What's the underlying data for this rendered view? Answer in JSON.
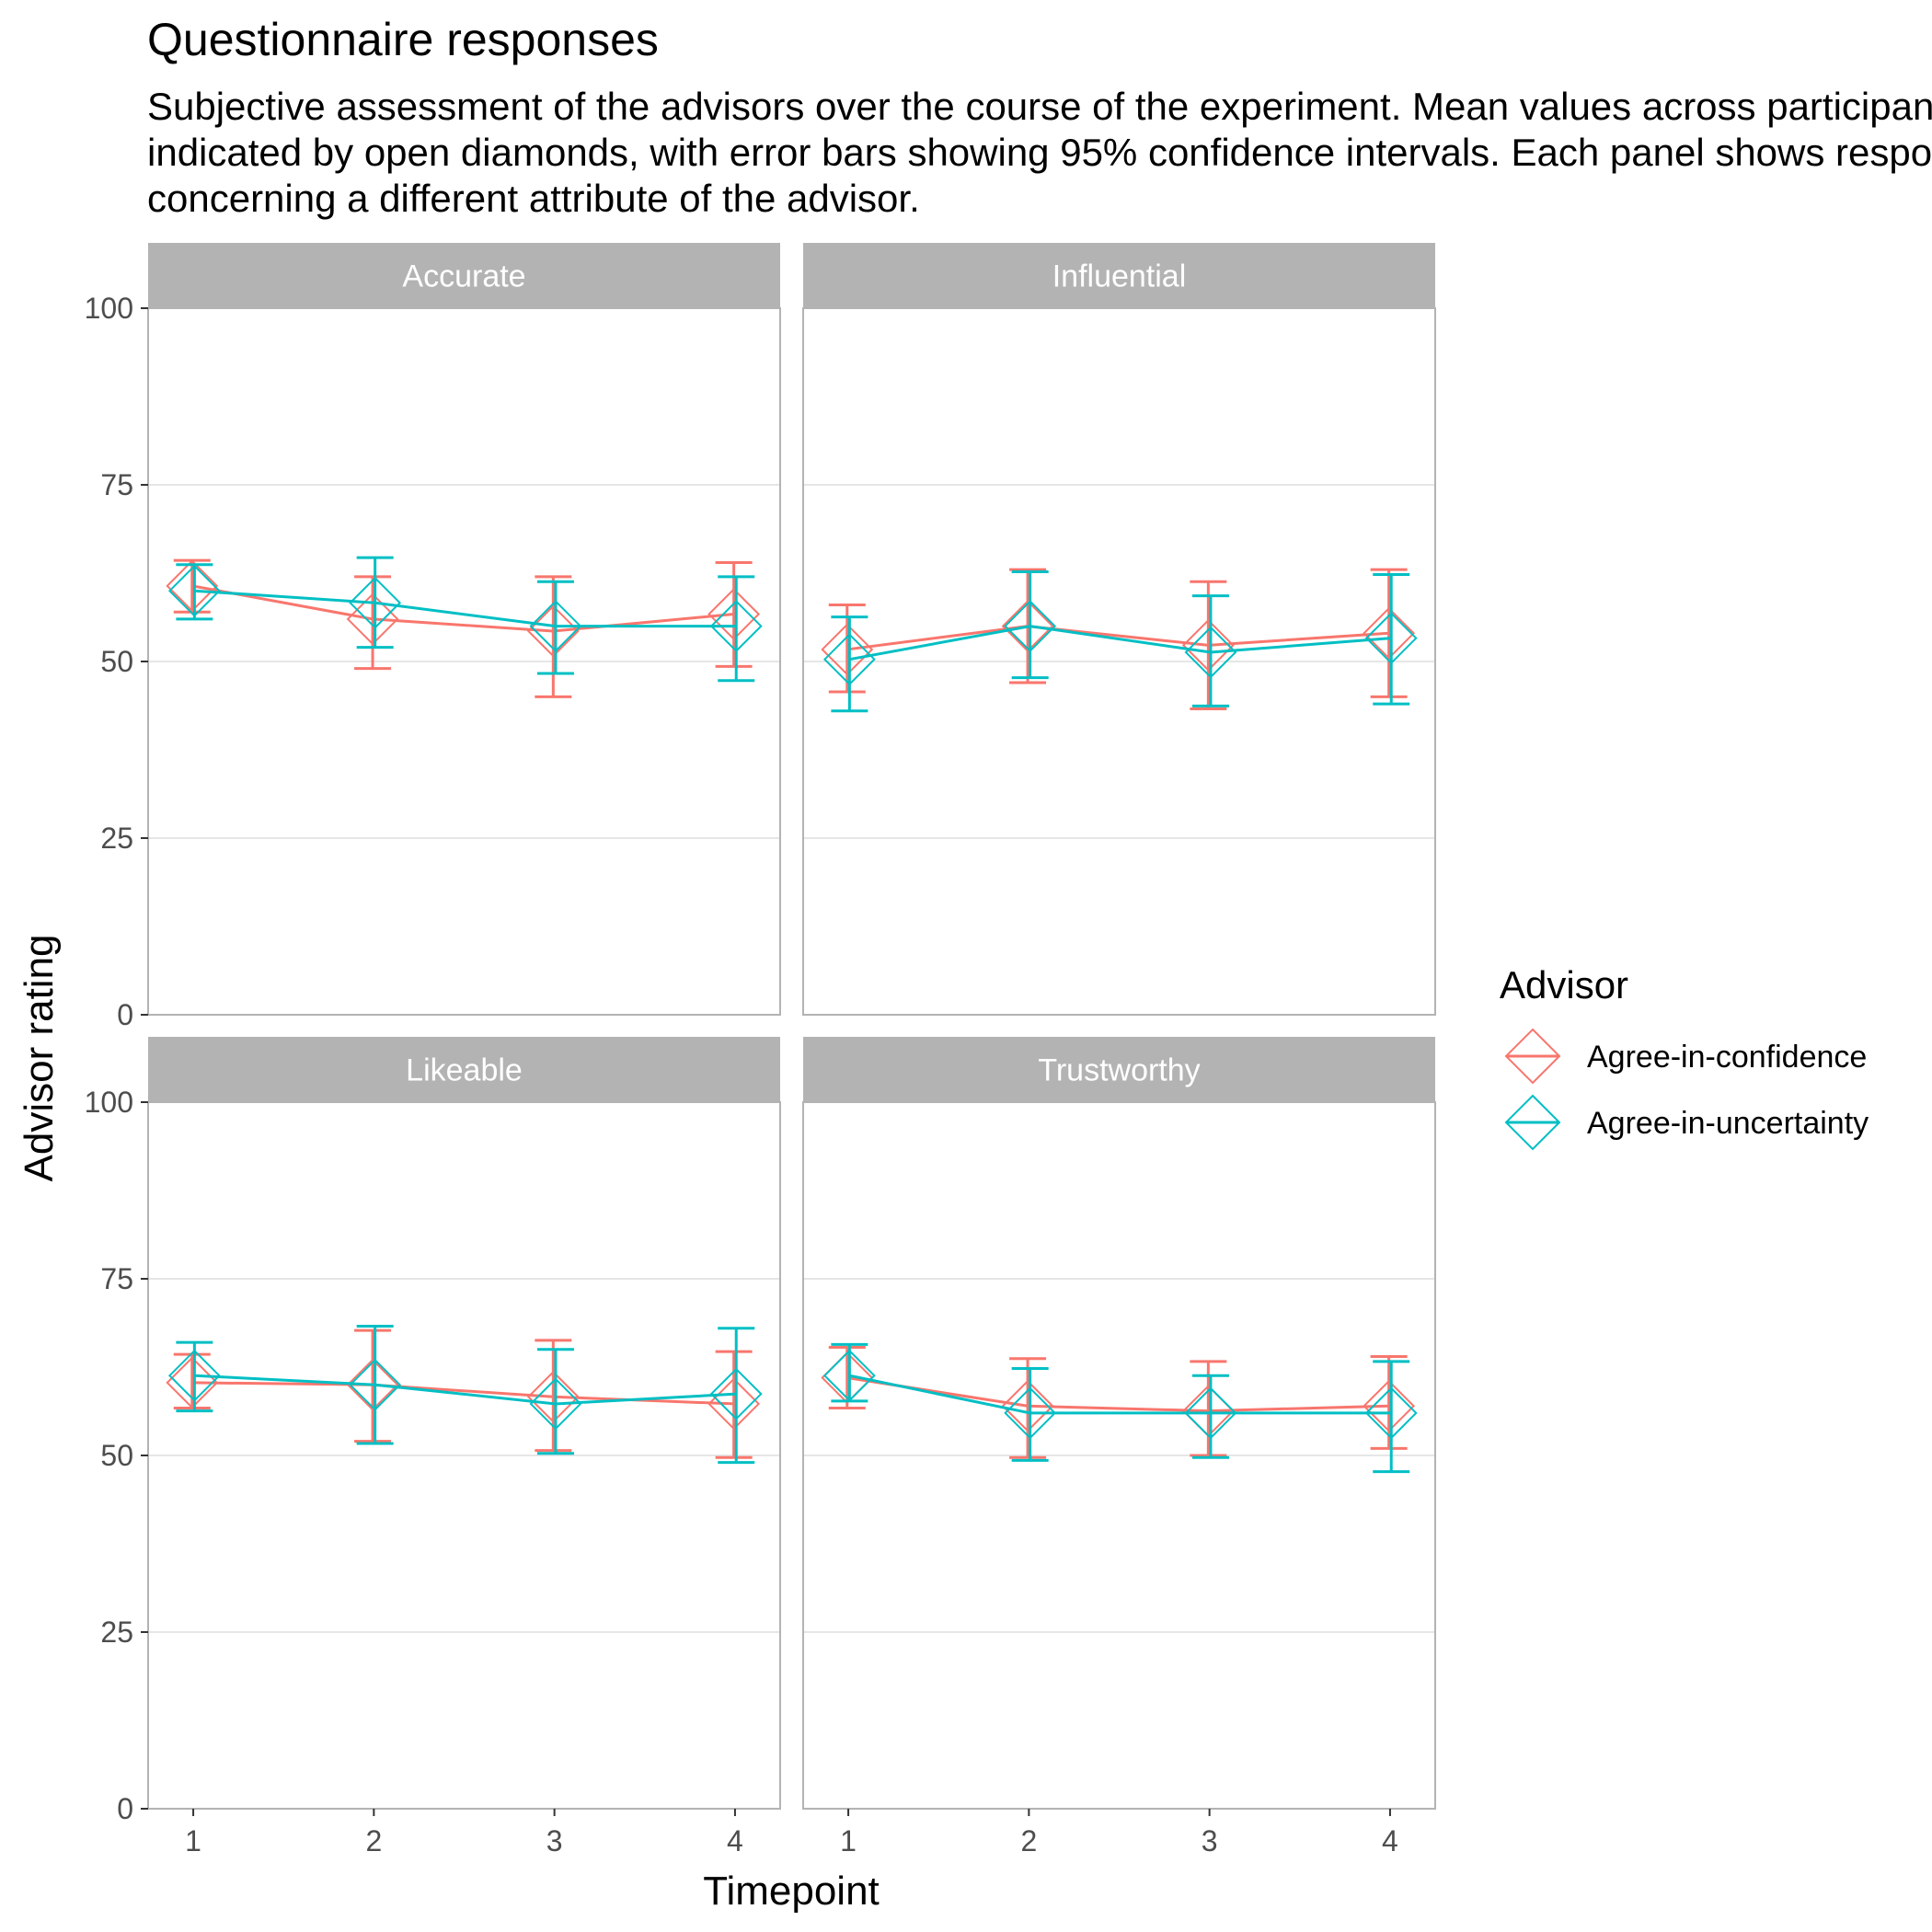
{
  "title": "Questionnaire responses",
  "subtitle_lines": [
    "Subjective assessment of the advisors over the course of the experiment. Mean values across participants are",
    "indicated by open diamonds, with error bars showing 95% confidence intervals. Each panel shows responses",
    "concerning a different attribute of the advisor."
  ],
  "chart_data": {
    "type": "line",
    "xlabel": "Timepoint",
    "ylabel": "Advisor rating",
    "x": [
      1,
      2,
      3,
      4
    ],
    "xlim": [
      0.75,
      4.25
    ],
    "ylim": [
      0,
      100
    ],
    "yticks": [
      0,
      25,
      50,
      75,
      100
    ],
    "grid": true,
    "marker": "open-diamond",
    "legend": {
      "title": "Advisor",
      "position": "right",
      "entries": [
        "Agree-in-confidence",
        "Agree-in-uncertainty"
      ]
    },
    "colors": {
      "Agree-in-confidence": "#F8766D",
      "Agree-in-uncertainty": "#00BFC4"
    },
    "panels": [
      {
        "name": "Accurate",
        "series": [
          {
            "name": "Agree-in-confidence",
            "mean": [
              60.7,
              56.0,
              54.3,
              56.7
            ],
            "ci_low": [
              57.0,
              49.0,
              45.0,
              49.3
            ],
            "ci_high": [
              64.3,
              62.0,
              62.0,
              64.0
            ]
          },
          {
            "name": "Agree-in-uncertainty",
            "mean": [
              60.0,
              58.3,
              55.0,
              55.0
            ],
            "ci_low": [
              56.0,
              52.0,
              48.3,
              47.3
            ],
            "ci_high": [
              63.7,
              64.7,
              61.3,
              62.0
            ]
          }
        ]
      },
      {
        "name": "Influential",
        "series": [
          {
            "name": "Agree-in-confidence",
            "mean": [
              51.7,
              55.0,
              52.3,
              54.0
            ],
            "ci_low": [
              45.7,
              47.0,
              43.3,
              45.0
            ],
            "ci_high": [
              58.0,
              63.0,
              61.3,
              63.0
            ]
          },
          {
            "name": "Agree-in-uncertainty",
            "mean": [
              50.3,
              55.0,
              51.3,
              53.3
            ],
            "ci_low": [
              43.0,
              47.7,
              43.7,
              44.0
            ],
            "ci_high": [
              56.3,
              62.7,
              59.3,
              62.3
            ]
          }
        ]
      },
      {
        "name": "Likeable",
        "series": [
          {
            "name": "Agree-in-confidence",
            "mean": [
              60.3,
              60.0,
              58.3,
              57.3
            ],
            "ci_low": [
              56.7,
              52.0,
              50.7,
              49.7
            ],
            "ci_high": [
              64.3,
              67.7,
              66.3,
              64.7
            ]
          },
          {
            "name": "Agree-in-uncertainty",
            "mean": [
              61.3,
              60.0,
              57.3,
              58.7
            ],
            "ci_low": [
              56.3,
              51.7,
              50.3,
              49.0
            ],
            "ci_high": [
              66.0,
              68.3,
              65.0,
              68.0
            ]
          }
        ]
      },
      {
        "name": "Trustworthy",
        "series": [
          {
            "name": "Agree-in-confidence",
            "mean": [
              61.0,
              57.0,
              56.3,
              57.0
            ],
            "ci_low": [
              56.7,
              49.7,
              50.0,
              51.0
            ],
            "ci_high": [
              65.3,
              63.7,
              63.3,
              64.0
            ]
          },
          {
            "name": "Agree-in-uncertainty",
            "mean": [
              61.3,
              56.0,
              56.0,
              56.0
            ],
            "ci_low": [
              57.7,
              49.3,
              49.7,
              47.7
            ],
            "ci_high": [
              65.7,
              62.3,
              61.3,
              63.3
            ]
          }
        ]
      }
    ]
  }
}
